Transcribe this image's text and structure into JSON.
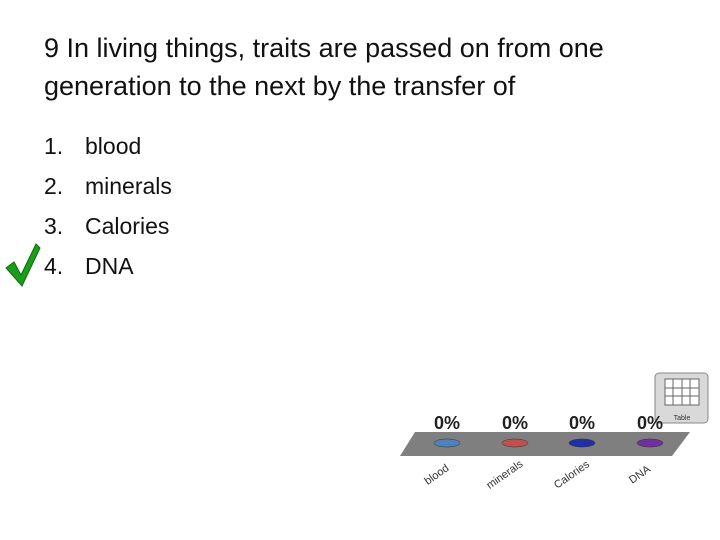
{
  "question": {
    "title": "9 In living things, traits are passed on from one generation to the next by the transfer of",
    "options": [
      {
        "number": "1.",
        "text": "blood"
      },
      {
        "number": "2.",
        "text": "minerals"
      },
      {
        "number": "3.",
        "text": "Calories"
      },
      {
        "number": "4.",
        "text": "DNA"
      }
    ]
  },
  "table_icon": {
    "label": "Table"
  },
  "chart_data": {
    "type": "bar",
    "categories": [
      "blood",
      "minerals",
      "Calories",
      "DNA"
    ],
    "values": [
      0,
      0,
      0,
      0
    ],
    "value_labels": [
      "0%",
      "0%",
      "0%",
      "0%"
    ],
    "colors": [
      "#4f81bd",
      "#c0504d",
      "#1f2fa8",
      "#7030a0"
    ]
  }
}
